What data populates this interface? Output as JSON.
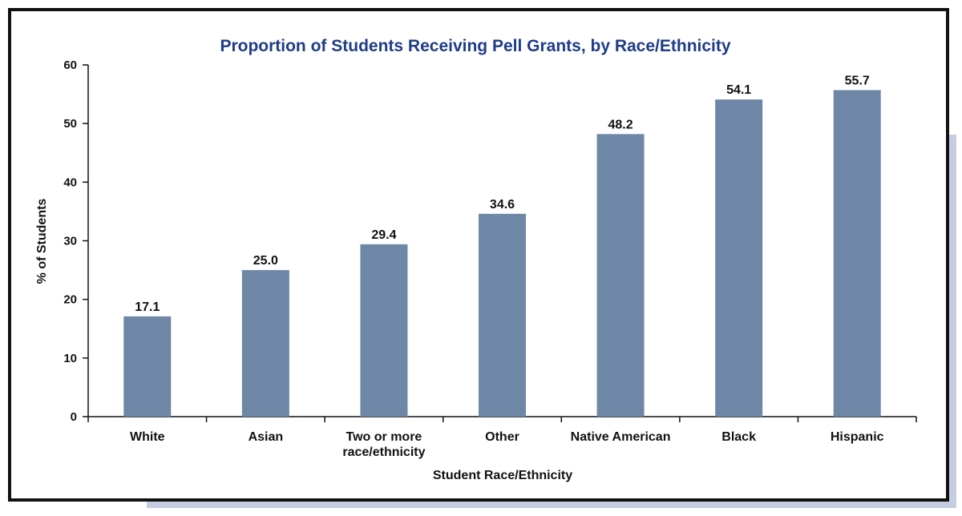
{
  "chart_data": {
    "type": "bar",
    "title": "Proportion of Students Receiving Pell Grants, by Race/Ethnicity",
    "xlabel": "Student Race/Ethnicity",
    "ylabel": "% of Students",
    "ylim": [
      0,
      60
    ],
    "yticks": [
      0,
      10,
      20,
      30,
      40,
      50,
      60
    ],
    "categories": [
      [
        "White"
      ],
      [
        "Asian"
      ],
      [
        "Two or more",
        "race/ethnicity"
      ],
      [
        "Other"
      ],
      [
        "Native American"
      ],
      [
        "Black"
      ],
      [
        "Hispanic"
      ]
    ],
    "values": [
      17.1,
      25.0,
      29.4,
      34.6,
      48.2,
      54.1,
      55.7
    ],
    "value_labels": [
      "17.1",
      "25.0",
      "29.4",
      "34.6",
      "48.2",
      "54.1",
      "55.7"
    ],
    "grid": false,
    "legend": "none",
    "bar_color": "#6e87a6"
  }
}
